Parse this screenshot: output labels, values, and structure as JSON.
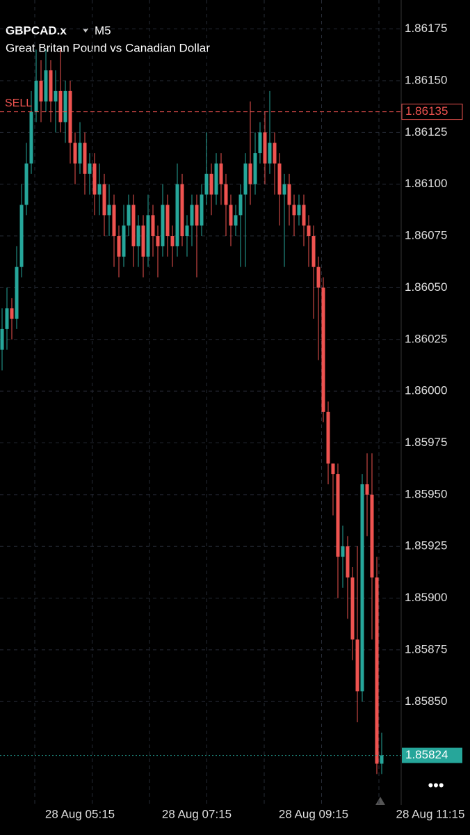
{
  "chart_data": {
    "type": "candlestick",
    "title": "GBPCAD.x",
    "timeframe": "M5",
    "subtitle": "Great Britan Pound vs Canadian Dollar",
    "order_label": "SELL",
    "order_price": 1.86135,
    "current_price": 1.85824,
    "up_color": "#26a69a",
    "down_color": "#ef5350",
    "grid": true,
    "ylim": [
      1.858,
      1.8619
    ],
    "yticks": [
      1.86175,
      {
        "value": 1.8615,
        "label": "1.86150"
      },
      1.86125,
      {
        "value": 1.861,
        "label": "1.86100"
      },
      1.86075,
      {
        "value": 1.8605,
        "label": "1.86050"
      },
      1.86025,
      {
        "value": 1.86,
        "label": "1.86000"
      },
      1.85975,
      {
        "value": 1.8595,
        "label": "1.85950"
      },
      1.85925,
      {
        "value": 1.859,
        "label": "1.85900"
      },
      1.85875,
      {
        "value": 1.8585,
        "label": "1.85850"
      }
    ],
    "xlim": [
      0,
      82
    ],
    "xticks": [
      {
        "value": 16,
        "label": "28 Aug 05:15"
      },
      {
        "value": 40,
        "label": "28 Aug 07:15"
      },
      {
        "value": 64,
        "label": "28 Aug 09:15"
      },
      {
        "value": 88,
        "label": "28 Aug 11:15"
      }
    ],
    "open": [
      1.8602,
      1.8603,
      1.8604,
      1.86035,
      1.8606,
      1.8609,
      1.8611,
      1.86135,
      1.8615,
      1.8614,
      1.86155,
      1.8614,
      1.86145,
      1.8613,
      1.86145,
      1.8612,
      1.8611,
      1.8612,
      1.86105,
      1.8611,
      1.86095,
      1.861,
      1.86085,
      1.8609,
      1.86075,
      1.86065,
      1.8608,
      1.8609,
      1.8607,
      1.8608,
      1.86065,
      1.86085,
      1.86075,
      1.8607,
      1.8609,
      1.86075,
      1.8607,
      1.861,
      1.86075,
      1.8608,
      1.8609,
      1.8608,
      1.86095,
      1.86105,
      1.86095,
      1.8611,
      1.861,
      1.8609,
      1.8608,
      1.86085,
      1.86095,
      1.8611,
      1.861,
      1.86115,
      1.86125,
      1.8611,
      1.8612,
      1.8611,
      1.86095,
      1.861,
      1.8609,
      1.86085,
      1.8609,
      1.8608,
      1.86075,
      1.8606,
      1.8605,
      1.8599,
      1.85965,
      1.8596,
      1.8592,
      1.85925,
      1.8591,
      1.8588,
      1.85855,
      1.85955,
      1.8595,
      1.8591,
      1.8582
    ],
    "high": [
      1.8604,
      1.8605,
      1.86045,
      1.8607,
      1.861,
      1.8612,
      1.86145,
      1.86165,
      1.8616,
      1.86165,
      1.8616,
      1.86155,
      1.86165,
      1.8615,
      1.8615,
      1.86125,
      1.8613,
      1.86125,
      1.86115,
      1.86115,
      1.8611,
      1.86105,
      1.861,
      1.86095,
      1.8608,
      1.8609,
      1.86095,
      1.86095,
      1.86085,
      1.86085,
      1.86095,
      1.8609,
      1.8608,
      1.861,
      1.86095,
      1.8608,
      1.8611,
      1.86105,
      1.86085,
      1.86095,
      1.86095,
      1.861,
      1.86125,
      1.8611,
      1.86115,
      1.86115,
      1.86105,
      1.86095,
      1.8609,
      1.861,
      1.86115,
      1.8614,
      1.86125,
      1.8613,
      1.86135,
      1.86145,
      1.86125,
      1.86115,
      1.86105,
      1.86105,
      1.86095,
      1.86095,
      1.86095,
      1.86085,
      1.8608,
      1.86065,
      1.86055,
      1.85995,
      1.85965,
      1.85965,
      1.85935,
      1.8593,
      1.85915,
      1.85925,
      1.8596,
      1.8597,
      1.8597,
      1.8592,
      1.85835
    ],
    "low": [
      1.8601,
      1.8602,
      1.86025,
      1.8603,
      1.86055,
      1.86085,
      1.86105,
      1.8613,
      1.8613,
      1.86135,
      1.8613,
      1.86125,
      1.86125,
      1.8612,
      1.8611,
      1.861,
      1.86105,
      1.86095,
      1.86095,
      1.86085,
      1.86085,
      1.86075,
      1.86075,
      1.8606,
      1.86055,
      1.8606,
      1.86075,
      1.8606,
      1.8606,
      1.86055,
      1.8606,
      1.86065,
      1.86055,
      1.86065,
      1.86065,
      1.8606,
      1.86065,
      1.8607,
      1.86065,
      1.8607,
      1.86055,
      1.86075,
      1.8609,
      1.86085,
      1.8609,
      1.8609,
      1.86075,
      1.8607,
      1.86075,
      1.8606,
      1.8606,
      1.8609,
      1.86095,
      1.8611,
      1.861,
      1.86105,
      1.86095,
      1.8608,
      1.8606,
      1.8608,
      1.86075,
      1.8608,
      1.8607,
      1.8606,
      1.86035,
      1.86015,
      1.85985,
      1.85955,
      1.8594,
      1.859,
      1.85905,
      1.8589,
      1.8587,
      1.8584,
      1.8585,
      1.8593,
      1.8588,
      1.85815,
      1.85815
    ],
    "close": [
      1.8603,
      1.8604,
      1.86035,
      1.8606,
      1.8609,
      1.8611,
      1.86135,
      1.8615,
      1.8614,
      1.86155,
      1.8614,
      1.86145,
      1.8613,
      1.86145,
      1.8612,
      1.8611,
      1.8612,
      1.86105,
      1.8611,
      1.86095,
      1.861,
      1.86085,
      1.8609,
      1.86075,
      1.86065,
      1.8608,
      1.8609,
      1.8607,
      1.8608,
      1.86065,
      1.86085,
      1.86075,
      1.8607,
      1.8609,
      1.86075,
      1.8607,
      1.861,
      1.86075,
      1.8608,
      1.8609,
      1.8608,
      1.86095,
      1.86105,
      1.86095,
      1.8611,
      1.861,
      1.8609,
      1.8608,
      1.86085,
      1.86095,
      1.8611,
      1.861,
      1.86115,
      1.86125,
      1.8611,
      1.8612,
      1.8611,
      1.86095,
      1.861,
      1.8609,
      1.86085,
      1.8609,
      1.8608,
      1.86075,
      1.8606,
      1.8605,
      1.8599,
      1.85965,
      1.8596,
      1.8592,
      1.85925,
      1.8591,
      1.8588,
      1.85855,
      1.85955,
      1.8595,
      1.8591,
      1.8582,
      1.85824
    ]
  }
}
